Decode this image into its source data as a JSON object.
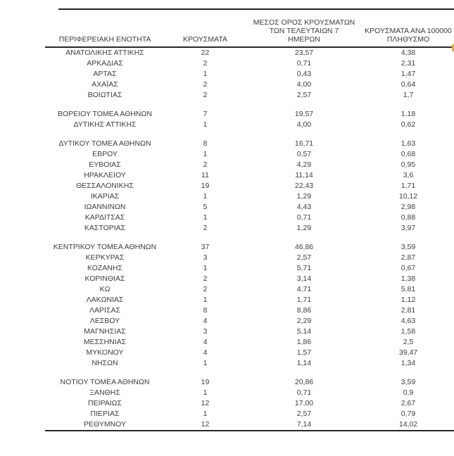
{
  "table": {
    "columns": {
      "region": "ΠΕΡΙΦΕΡΕΙΑΚΗ ΕΝΟΤΗΤΑ",
      "cases": "ΚΡΟΥΣΜΑΤΑ",
      "avg7_lines": [
        "ΜΕΣΟΣ ΟΡΟΣ ΚΡΟΥΣΜΑΤΩΝ",
        "ΤΩΝ ΤΕΛΕΥΤΑΙΩΝ 7",
        "ΗΜΕΡΩΝ"
      ],
      "per100k_lines": [
        "ΚΡΟΥΣΜΑΤΑ ΑΝΑ 100000",
        "ΠΛΗΘΥΣΜΟ"
      ]
    },
    "groups": [
      {
        "rows": [
          {
            "region": "ΑΝΑΤΟΛΙΚΗΣ ΑΤΤΙΚΗΣ",
            "cases": "22",
            "avg7": "23,57",
            "per100k": "4,38"
          },
          {
            "region": "ΑΡΚΑΔΙΑΣ",
            "cases": "2",
            "avg7": "0,71",
            "per100k": "2,31"
          },
          {
            "region": "ΑΡΤΑΣ",
            "cases": "1",
            "avg7": "0,43",
            "per100k": "1,47"
          },
          {
            "region": "ΑΧΑΪΑΣ",
            "cases": "2",
            "avg7": "4,00",
            "per100k": "0,64"
          },
          {
            "region": "ΒΟΙΩΤΙΑΣ",
            "cases": "2",
            "avg7": "2,57",
            "per100k": "1,7"
          }
        ]
      },
      {
        "rows": [
          {
            "region": "ΒΟΡΕΙΟΥ ΤΟΜΕΑ ΑΘΗΝΩΝ",
            "cases": "7",
            "avg7": "19,57",
            "per100k": "1,18"
          },
          {
            "region": "ΔΥΤΙΚΗΣ ΑΤΤΙΚΗΣ",
            "cases": "1",
            "avg7": "4,00",
            "per100k": "0,62"
          }
        ]
      },
      {
        "rows": [
          {
            "region": "ΔΥΤΙΚΟΥ ΤΟΜΕΑ ΑΘΗΝΩΝ",
            "cases": "8",
            "avg7": "16,71",
            "per100k": "1,63"
          },
          {
            "region": "ΕΒΡΟΥ",
            "cases": "1",
            "avg7": "0,57",
            "per100k": "0,68"
          },
          {
            "region": "ΕΥΒΟΙΑΣ",
            "cases": "2",
            "avg7": "4,29",
            "per100k": "0,95"
          },
          {
            "region": "ΗΡΑΚΛΕΙΟΥ",
            "cases": "11",
            "avg7": "11,14",
            "per100k": "3,6"
          },
          {
            "region": "ΘΕΣΣΑΛΟΝΙΚΗΣ",
            "cases": "19",
            "avg7": "22,43",
            "per100k": "1,71"
          },
          {
            "region": "ΙΚΑΡΙΑΣ",
            "cases": "1",
            "avg7": "1,29",
            "per100k": "10,12"
          },
          {
            "region": "ΙΩΑΝΝΙΝΩΝ",
            "cases": "5",
            "avg7": "4,43",
            "per100k": "2,98"
          },
          {
            "region": "ΚΑΡΔΙΤΣΑΣ",
            "cases": "1",
            "avg7": "0,71",
            "per100k": "0,88"
          },
          {
            "region": "ΚΑΣΤΟΡΙΑΣ",
            "cases": "2",
            "avg7": "1,29",
            "per100k": "3,97"
          }
        ]
      },
      {
        "rows": [
          {
            "region": "ΚΕΝΤΡΙΚΟΥ ΤΟΜΕΑ ΑΘΗΝΩΝ",
            "cases": "37",
            "avg7": "46,86",
            "per100k": "3,59"
          },
          {
            "region": "ΚΕΡΚΥΡΑΣ",
            "cases": "3",
            "avg7": "2,57",
            "per100k": "2,87"
          },
          {
            "region": "ΚΟΖΑΝΗΣ",
            "cases": "1",
            "avg7": "5,71",
            "per100k": "0,67"
          },
          {
            "region": "ΚΟΡΙΝΘΙΑΣ",
            "cases": "2",
            "avg7": "3,14",
            "per100k": "1,38"
          },
          {
            "region": "ΚΩ",
            "cases": "2",
            "avg7": "4,71",
            "per100k": "5,81"
          },
          {
            "region": "ΛΑΚΩΝΙΑΣ",
            "cases": "1",
            "avg7": "1,71",
            "per100k": "1,12"
          },
          {
            "region": "ΛΑΡΙΣΑΣ",
            "cases": "8",
            "avg7": "8,86",
            "per100k": "2,81"
          },
          {
            "region": "ΛΕΣΒΟΥ",
            "cases": "4",
            "avg7": "2,29",
            "per100k": "4,63"
          },
          {
            "region": "ΜΑΓΝΗΣΙΑΣ",
            "cases": "3",
            "avg7": "5,14",
            "per100k": "1,58"
          },
          {
            "region": "ΜΕΣΣΗΝΙΑΣ",
            "cases": "4",
            "avg7": "1,86",
            "per100k": "2,5"
          },
          {
            "region": "ΜΥΚΟΝΟΥ",
            "cases": "4",
            "avg7": "1,57",
            "per100k": "39,47"
          },
          {
            "region": "ΝΗΣΩΝ",
            "cases": "1",
            "avg7": "1,14",
            "per100k": "1,34"
          }
        ]
      },
      {
        "rows": [
          {
            "region": "ΝΟΤΙΟΥ ΤΟΜΕΑ ΑΘΗΝΩΝ",
            "cases": "19",
            "avg7": "20,86",
            "per100k": "3,59"
          },
          {
            "region": "ΞΑΝΘΗΣ",
            "cases": "1",
            "avg7": "0,71",
            "per100k": "0,9"
          },
          {
            "region": "ΠΕΙΡΑΙΩΣ",
            "cases": "12",
            "avg7": "17,00",
            "per100k": "2,67"
          },
          {
            "region": "ΠΙΕΡΙΑΣ",
            "cases": "1",
            "avg7": "2,57",
            "per100k": "0,79"
          },
          {
            "region": "ΡΕΘΥΜΝΟΥ",
            "cases": "12",
            "avg7": "7,14",
            "per100k": "14,02"
          }
        ]
      }
    ]
  },
  "colors": {
    "background": "#ffffff",
    "text": "#3d3d3d",
    "rule_line": "#262626",
    "edge_highlight": "#f2a43c"
  }
}
